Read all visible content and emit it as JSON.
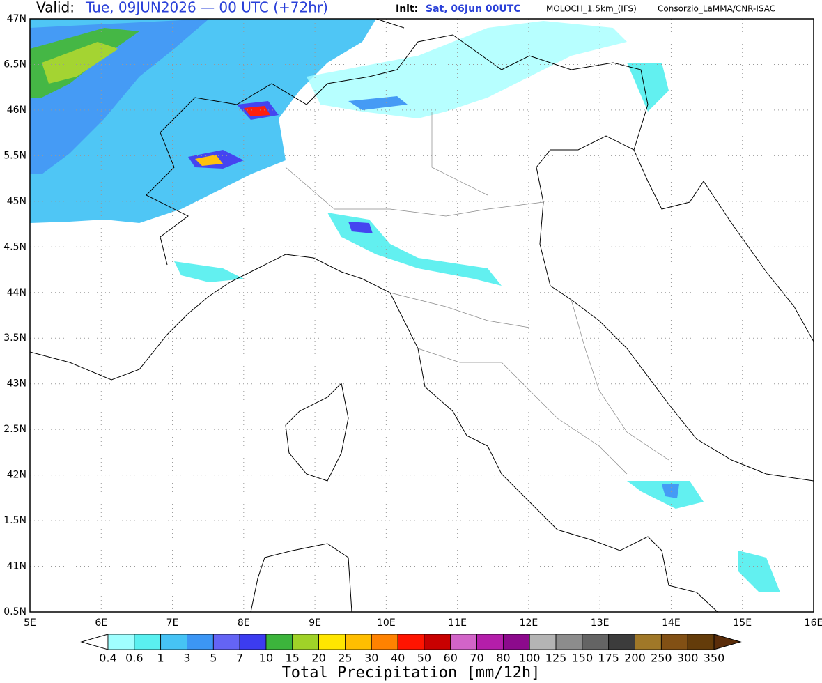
{
  "header": {
    "valid_label": "Valid:",
    "valid_time": "Tue, 09JUN2026 — 00 UTC (+72hr)",
    "init_label": "Init:",
    "init_time": "Sat, 06Jun 00UTC",
    "model": "MOLOCH_1.5km_(IFS)",
    "credit": "Consorzio_LaMMA/CNR-ISAC"
  },
  "map": {
    "lon_ticks": [
      {
        "value": 5,
        "label": "5E"
      },
      {
        "value": 6,
        "label": "6E"
      },
      {
        "value": 7,
        "label": "7E"
      },
      {
        "value": 8,
        "label": "8E"
      },
      {
        "value": 9,
        "label": "9E"
      },
      {
        "value": 10,
        "label": "10E"
      },
      {
        "value": 11,
        "label": "11E"
      },
      {
        "value": 12,
        "label": "12E"
      },
      {
        "value": 13,
        "label": "13E"
      },
      {
        "value": 14,
        "label": "14E"
      },
      {
        "value": 15,
        "label": "15E"
      },
      {
        "value": 16,
        "label": "16E"
      }
    ],
    "lat_ticks": [
      {
        "value": 47,
        "label": "47N"
      },
      {
        "value": 46.5,
        "label": "6.5N"
      },
      {
        "value": 46,
        "label": "46N"
      },
      {
        "value": 45.5,
        "label": "5.5N"
      },
      {
        "value": 45,
        "label": "45N"
      },
      {
        "value": 44.5,
        "label": "4.5N"
      },
      {
        "value": 44,
        "label": "44N"
      },
      {
        "value": 43.5,
        "label": "3.5N"
      },
      {
        "value": 43,
        "label": "43N"
      },
      {
        "value": 42.5,
        "label": "2.5N"
      },
      {
        "value": 42,
        "label": "42N"
      },
      {
        "value": 41.5,
        "label": "1.5N"
      },
      {
        "value": 41,
        "label": "41N"
      },
      {
        "value": 40.5,
        "label": "0.5N"
      }
    ]
  },
  "colorbar": {
    "title": "Total Precipitation [mm/12h]",
    "levels": [
      0.4,
      0.6,
      1,
      3,
      5,
      7,
      10,
      15,
      20,
      25,
      30,
      40,
      50,
      60,
      70,
      80,
      100,
      125,
      150,
      175,
      200,
      250,
      300,
      350
    ],
    "under_color": "#ffffff",
    "over_color": "#5a2d0a",
    "colors": [
      "#a0ffff",
      "#5af0f0",
      "#46c3f5",
      "#3c96f5",
      "#6464f5",
      "#3c3cf0",
      "#3cb43c",
      "#a0d228",
      "#ffe600",
      "#ffbe00",
      "#ff8200",
      "#ff1400",
      "#c80000",
      "#d264c8",
      "#b41eaa",
      "#8c0a8c",
      "#b4b4b4",
      "#8c8c8c",
      "#646464",
      "#3c3c3c",
      "#a07828",
      "#825014",
      "#643c0a"
    ]
  }
}
